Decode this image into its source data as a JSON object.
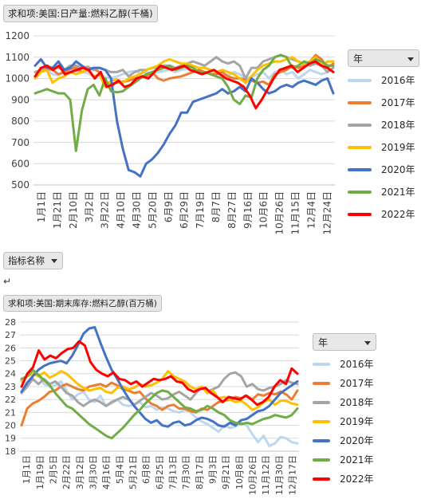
{
  "chart_data": [
    {
      "type": "line",
      "title": "求和项:美国:日产量:燃料乙醇(千桶)",
      "ylim": [
        500,
        1200
      ],
      "yticks": [
        500,
        600,
        700,
        800,
        900,
        1000,
        1100,
        1200
      ],
      "x_tick_labels": [
        "1月1日",
        "1月21日",
        "2月10日",
        "3月2日",
        "3月22日",
        "4月10日",
        "4月30日",
        "5月20日",
        "6月9日",
        "6月29日",
        "7月19日",
        "8月7日",
        "8月27日",
        "9月16日",
        "10月6日",
        "10月26日",
        "11月15日",
        "12月4日",
        "12月24日"
      ],
      "legend_title": "年",
      "legend_placement": "right",
      "grid": true,
      "series": [
        {
          "name": "2016年",
          "color": "#bdd7ee",
          "values": [
            1005,
            1035,
            1040,
            1020,
            1015,
            1030,
            1040,
            1035,
            1030,
            1025,
            1010,
            1020,
            1005,
            1000,
            1010,
            1020,
            1030,
            1035,
            1025,
            1030,
            1020,
            1030,
            1035,
            1040,
            1030,
            1040,
            1045,
            1030,
            1035,
            1030,
            1025,
            1030,
            1020,
            1015,
            1030,
            1020,
            1000,
            1005,
            1020,
            1030,
            1000,
            1030,
            1040,
            1020,
            1030,
            1000,
            1020,
            1040,
            1030,
            1020,
            1030,
            1050
          ]
        },
        {
          "name": "2017年",
          "color": "#ed7d31",
          "values": [
            1010,
            1050,
            1045,
            1040,
            1020,
            1030,
            1045,
            1050,
            1030,
            1040,
            1045,
            1030,
            985,
            975,
            980,
            985,
            990,
            1000,
            1005,
            1010,
            1030,
            1000,
            990,
            1000,
            1005,
            1010,
            1020,
            1030,
            1040,
            1030,
            1020,
            1020,
            1030,
            1010,
            1000,
            1000,
            995,
            990,
            980,
            985,
            970,
            1020,
            1030,
            1040,
            1060,
            1050,
            1060,
            1080,
            1110,
            1090,
            1050,
            1070
          ]
        },
        {
          "name": "2018年",
          "color": "#a5a5a5",
          "values": [
            1030,
            1040,
            1060,
            1050,
            1050,
            1040,
            1060,
            1060,
            1050,
            1055,
            1040,
            1050,
            1040,
            1030,
            1030,
            1040,
            1010,
            1030,
            1040,
            1040,
            1050,
            1050,
            1060,
            1060,
            1050,
            1060,
            1070,
            1080,
            1070,
            1060,
            1080,
            1100,
            1080,
            1070,
            1080,
            1060,
            1000,
            1050,
            1050,
            1080,
            1090,
            1100,
            1110,
            1100,
            1090,
            1080,
            1070,
            1060,
            1070,
            1060,
            1030,
            1050
          ]
        },
        {
          "name": "2019年",
          "color": "#ffc000",
          "values": [
            1000,
            1030,
            1040,
            980,
            1000,
            1010,
            1030,
            1020,
            1030,
            1040,
            1010,
            1020,
            960,
            990,
            995,
            980,
            1000,
            1010,
            1020,
            1040,
            1050,
            1060,
            1080,
            1090,
            1080,
            1070,
            1070,
            1060,
            1050,
            1050,
            1040,
            1030,
            1040,
            1030,
            1020,
            1000,
            980,
            1010,
            1040,
            1060,
            1070,
            1080,
            1080,
            1090,
            1100,
            1080,
            1070,
            1080,
            1100,
            1060,
            1080,
            1080
          ]
        },
        {
          "name": "2020年",
          "color": "#4472c4",
          "values": [
            1060,
            1090,
            1050,
            1050,
            1080,
            1040,
            1050,
            1080,
            1060,
            1040,
            1050,
            1050,
            1040,
            1000,
            800,
            670,
            570,
            560,
            540,
            600,
            620,
            650,
            690,
            740,
            780,
            840,
            840,
            890,
            900,
            910,
            920,
            930,
            950,
            930,
            940,
            960,
            940,
            1000,
            980,
            950,
            930,
            940,
            960,
            970,
            960,
            980,
            990,
            980,
            970,
            990,
            1000,
            930
          ]
        },
        {
          "name": "2021年",
          "color": "#70ad47",
          "values": [
            930,
            940,
            950,
            940,
            930,
            930,
            900,
            660,
            850,
            950,
            970,
            920,
            1000,
            940,
            935,
            940,
            960,
            980,
            1000,
            1020,
            1030,
            1040,
            1050,
            1060,
            1040,
            1050,
            1060,
            1050,
            1030,
            1030,
            1020,
            1010,
            1000,
            960,
            900,
            880,
            920,
            910,
            1000,
            1040,
            1060,
            1100,
            1110,
            1100,
            1050,
            1060,
            1080,
            1070,
            1090,
            1080,
            1060,
            1060
          ]
        },
        {
          "name": "2022年",
          "color": "#ff0000",
          "values": [
            1010,
            1050,
            1060,
            1040,
            1060,
            1020,
            1030,
            1040,
            1050,
            1040,
            1000,
            1030,
            960,
            970,
            990,
            960,
            970,
            1000,
            1010,
            1000,
            1030,
            1060,
            1050,
            1040,
            1050,
            1060,
            1040,
            1030,
            1020,
            1030,
            1040,
            1020,
            1000,
            990,
            980,
            960,
            920,
            860,
            900,
            950,
            1000,
            1040,
            1050,
            1060,
            1030,
            1050,
            1070,
            1080,
            1060,
            1050,
            1030
          ]
        }
      ]
    },
    {
      "type": "line",
      "title": "求和项:美国:期末库存:燃料乙醇(百万桶)",
      "ylim": [
        18,
        28
      ],
      "yticks": [
        18,
        19,
        20,
        21,
        22,
        23,
        24,
        25,
        26,
        27,
        28
      ],
      "x_tick_labels": [
        "1月1日",
        "1月19日",
        "2月5日",
        "2月22日",
        "3月12日",
        "3月30日",
        "4月16日",
        "5月4日",
        "5月21日",
        "6月8日",
        "6月25日",
        "7月13日",
        "7月30日",
        "8月17日",
        "9月3日",
        "9月21日",
        "10月8日",
        "10月26日",
        "11月12日",
        "11月30日",
        "12月17日"
      ],
      "legend_title": "年",
      "legend_placement": "right",
      "grid": true,
      "series": [
        {
          "name": "2016年",
          "color": "#bdd7ee",
          "values": [
            23.4,
            23.8,
            24.2,
            23.9,
            23.2,
            23.0,
            23.1,
            23.4,
            22.7,
            22.0,
            22.4,
            22.6,
            22.0,
            21.8,
            22.3,
            21.5,
            21.7,
            22.0,
            21.6,
            21.5,
            21.6,
            21.8,
            21.4,
            21.5,
            21.2,
            21.4,
            21.3,
            21.1,
            21.0,
            21.2,
            21.0,
            20.6,
            20.3,
            20.1,
            19.8,
            19.5,
            20.0,
            19.8,
            19.9,
            20.2,
            20.0,
            19.3,
            18.7,
            19.2,
            18.4,
            18.6,
            19.1,
            19.0,
            18.7,
            18.6
          ]
        },
        {
          "name": "2017年",
          "color": "#ed7d31",
          "values": [
            20.0,
            21.3,
            21.7,
            21.9,
            22.2,
            22.6,
            22.7,
            23.0,
            23.2,
            23.0,
            22.8,
            22.7,
            23.0,
            23.1,
            23.2,
            23.0,
            23.3,
            23.1,
            22.8,
            22.7,
            22.5,
            22.6,
            22.1,
            21.7,
            21.5,
            21.2,
            21.5,
            21.6,
            21.3,
            21.3,
            21.1,
            21.0,
            21.3,
            21.2,
            21.5,
            21.8,
            21.9,
            22.0,
            22.2,
            22.1,
            22.3,
            22.0,
            22.4,
            22.3,
            22.5,
            22.4,
            22.6,
            22.4,
            22.0,
            22.7
          ]
        },
        {
          "name": "2018年",
          "color": "#a5a5a5",
          "values": [
            22.5,
            23.0,
            23.6,
            23.2,
            23.6,
            23.2,
            23.4,
            23.0,
            22.5,
            22.3,
            21.8,
            21.5,
            21.8,
            22.0,
            21.8,
            21.5,
            21.8,
            22.0,
            22.2,
            22.0,
            21.6,
            21.9,
            22.2,
            22.5,
            22.3,
            22.0,
            22.1,
            22.4,
            22.6,
            22.3,
            22.0,
            22.5,
            23.0,
            22.6,
            22.8,
            23.0,
            23.6,
            24.0,
            24.1,
            23.8,
            23.0,
            23.2,
            22.8,
            22.7,
            22.9,
            23.0,
            23.2,
            23.5,
            23.3,
            23.2
          ]
        },
        {
          "name": "2019年",
          "color": "#ffc000",
          "values": [
            23.5,
            23.8,
            24.0,
            23.8,
            24.1,
            23.7,
            23.9,
            24.2,
            24.0,
            23.6,
            23.2,
            22.9,
            22.7,
            22.8,
            22.9,
            22.6,
            22.5,
            22.9,
            23.0,
            22.8,
            22.9,
            23.2,
            23.0,
            23.1,
            23.3,
            23.6,
            24.2,
            23.8,
            23.6,
            23.4,
            23.0,
            22.8,
            23.0,
            22.5,
            22.7,
            22.1,
            22.2,
            22.0,
            21.8,
            21.9,
            21.6,
            21.2,
            21.4,
            21.8,
            22.0,
            21.6,
            21.9,
            21.9,
            21.7,
            21.6
          ]
        },
        {
          "name": "2020年",
          "color": "#4472c4",
          "values": [
            22.6,
            23.3,
            23.8,
            24.3,
            24.6,
            24.8,
            24.9,
            25.0,
            24.8,
            25.4,
            26.2,
            27.1,
            27.5,
            27.6,
            26.4,
            25.3,
            24.3,
            23.6,
            22.8,
            22.1,
            21.5,
            21.0,
            20.5,
            20.2,
            20.4,
            20.0,
            19.9,
            20.2,
            20.3,
            20.0,
            20.1,
            20.4,
            20.6,
            20.5,
            20.3,
            20.0,
            19.9,
            20.2,
            20.0,
            20.4,
            20.5,
            20.8,
            21.1,
            21.2,
            21.5,
            22.0,
            22.5,
            22.8,
            23.1,
            23.4
          ]
        },
        {
          "name": "2021年",
          "color": "#70ad47",
          "values": [
            23.6,
            23.8,
            24.3,
            23.9,
            23.5,
            23.1,
            22.5,
            22.0,
            21.5,
            21.3,
            20.9,
            20.5,
            20.1,
            19.8,
            19.5,
            19.2,
            19.0,
            19.4,
            19.8,
            20.3,
            20.8,
            21.2,
            21.7,
            22.1,
            22.5,
            22.7,
            22.6,
            22.2,
            21.8,
            21.4,
            21.3,
            21.1,
            21.2,
            21.5,
            21.3,
            21.0,
            20.8,
            20.4,
            20.2,
            20.1,
            20.2,
            20.1,
            20.3,
            20.5,
            20.6,
            20.8,
            20.7,
            20.6,
            20.8,
            21.3
          ]
        },
        {
          "name": "2022年",
          "color": "#ff0000",
          "values": [
            23.0,
            24.0,
            24.5,
            25.8,
            25.1,
            25.4,
            25.2,
            25.6,
            25.9,
            26.0,
            26.5,
            26.2,
            24.9,
            24.3,
            24.0,
            23.8,
            24.1,
            23.6,
            23.5,
            23.2,
            23.4,
            23.0,
            23.3,
            23.6,
            23.5,
            23.6,
            23.8,
            23.4,
            23.3,
            22.8,
            22.6,
            22.8,
            22.9,
            22.5,
            22.2,
            21.8,
            22.2,
            22.1,
            22.0,
            22.3,
            22.0,
            21.6,
            21.8,
            22.2,
            23.0,
            23.5,
            23.2,
            24.4,
            24.0
          ]
        }
      ]
    }
  ]
}
